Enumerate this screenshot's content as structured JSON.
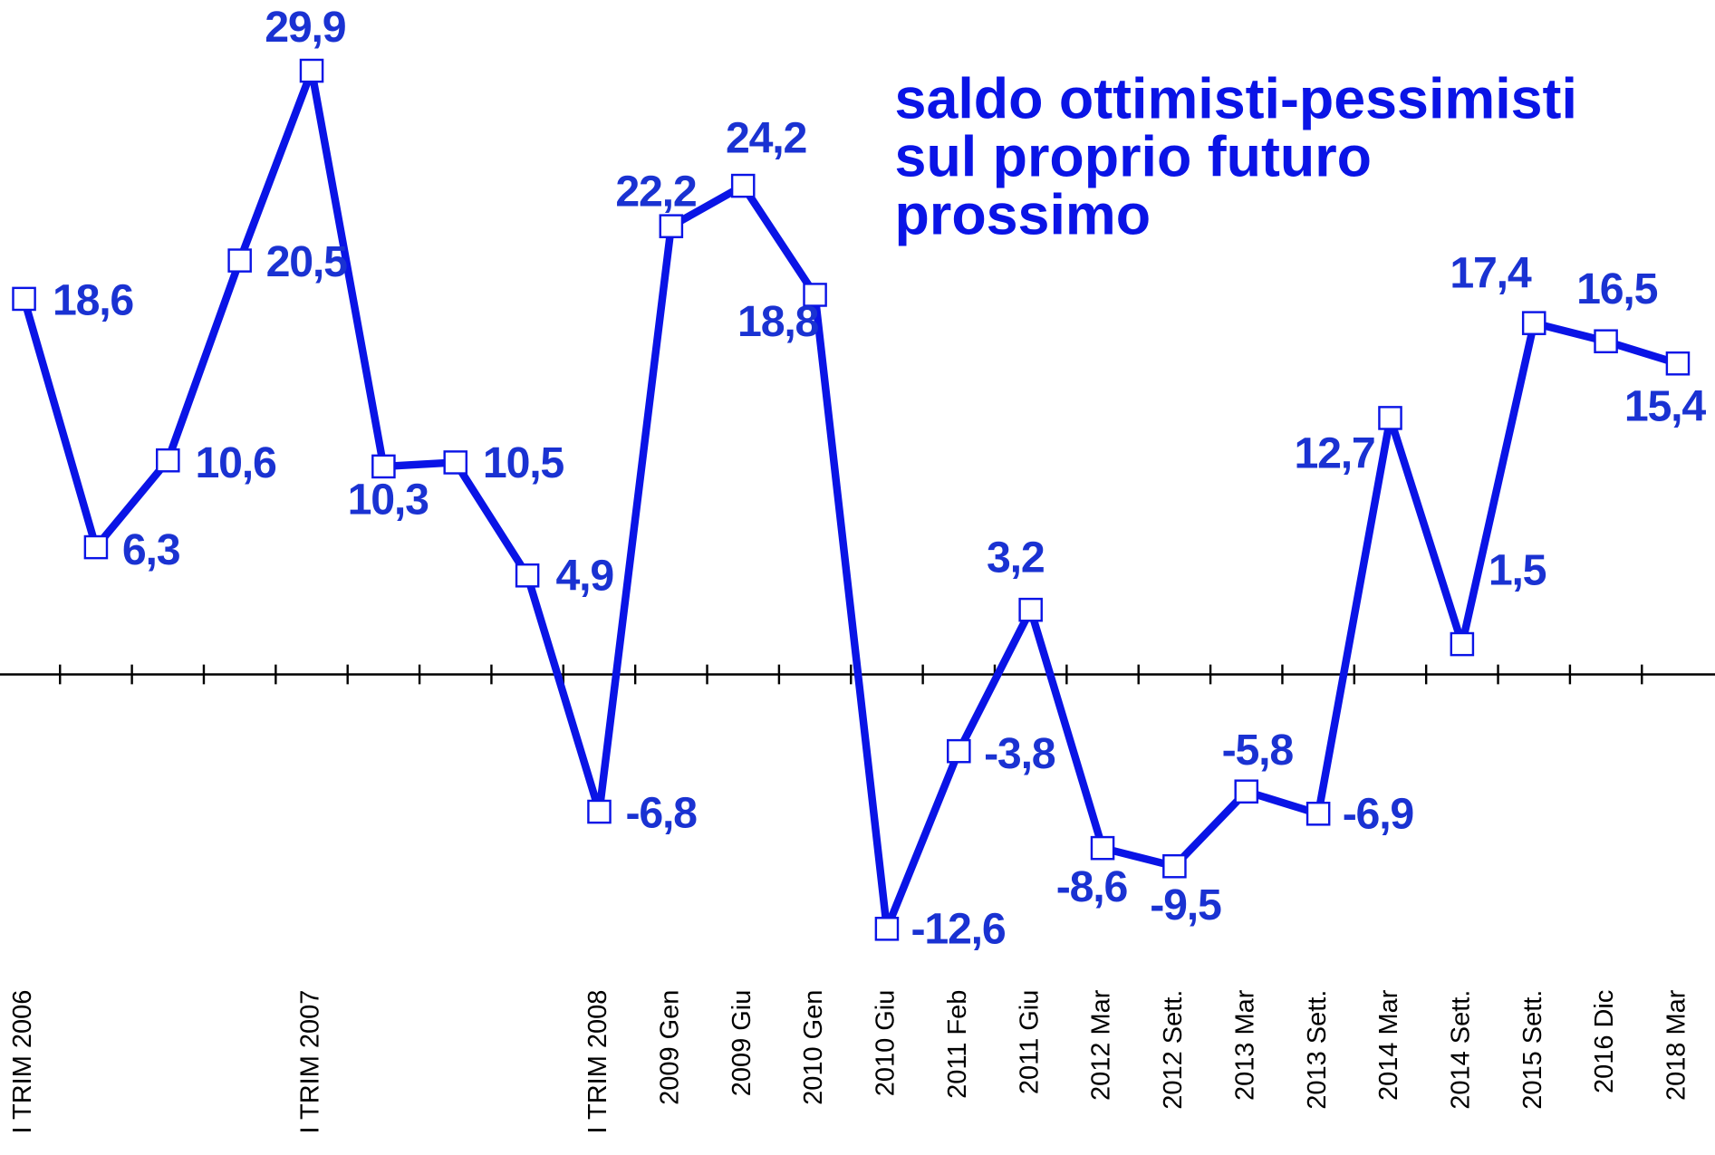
{
  "chart_data": {
    "type": "line",
    "title": [
      "saldo ottimisti-pessimisti",
      "sul proprio futuro",
      "prossimo"
    ],
    "categories": [
      "I TRIM 2006",
      null,
      null,
      null,
      "I TRIM 2007",
      null,
      null,
      null,
      "I TRIM 2008",
      "2009 Gen",
      "2009 Giu",
      "2010 Gen",
      "2010 Giu",
      "2011 Feb",
      "2011 Giu",
      "2012 Mar",
      "2012 Sett.",
      "2013 Mar",
      "2013 Sett.",
      "2014 Mar",
      "2014 Sett.",
      "2015 Sett.",
      "2016 Dic",
      "2018 Mar"
    ],
    "series": [
      {
        "color": "#0a14e6",
        "values": [
          18.6,
          6.3,
          10.6,
          20.5,
          29.9,
          10.3,
          10.5,
          4.9,
          -6.8,
          22.2,
          24.2,
          18.8,
          -12.6,
          -3.8,
          3.2,
          -8.6,
          -9.5,
          -5.8,
          -6.9,
          12.7,
          1.5,
          17.4,
          16.5,
          15.4
        ],
        "value_labels": [
          "18,6",
          "6,3",
          "10,6",
          "20,5",
          "29,9",
          "10,3",
          "10,5",
          "4,9",
          "-6,8",
          "22,2",
          "24,2",
          "18,8",
          "-12,6",
          "-3,8",
          "3,2",
          "-8,6",
          "-9,5",
          "-5,8",
          "-6,9",
          "12,7",
          "1,5",
          "17,4",
          "16,5",
          "15,4"
        ]
      }
    ],
    "ylim": [
      -23.8,
      33.4
    ]
  }
}
